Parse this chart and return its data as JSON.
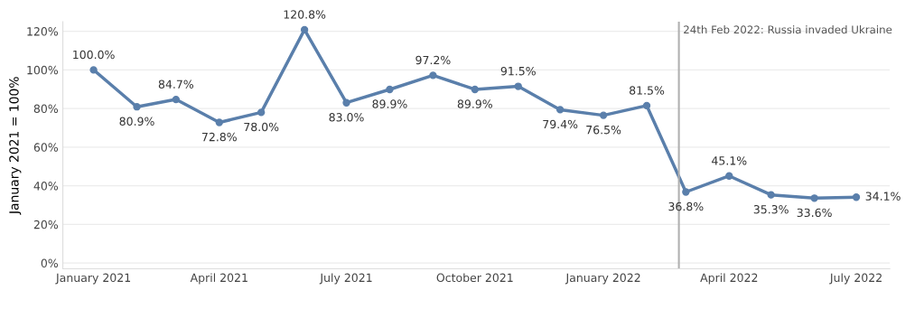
{
  "chart_data": {
    "type": "line",
    "ylabel": "January 2021 = 100%",
    "x": [
      "2021-01",
      "2021-02",
      "2021-03",
      "2021-04",
      "2021-05",
      "2021-06",
      "2021-07",
      "2021-08",
      "2021-09",
      "2021-10",
      "2021-11",
      "2021-12",
      "2022-01",
      "2022-02",
      "2022-03",
      "2022-04",
      "2022-05",
      "2022-06",
      "2022-07"
    ],
    "series": [
      {
        "color": "#5a7fab",
        "values": [
          100.0,
          80.9,
          84.7,
          72.8,
          78.0,
          120.8,
          83.0,
          89.9,
          97.2,
          89.9,
          91.5,
          79.4,
          76.5,
          81.5,
          36.8,
          45.1,
          35.3,
          33.6,
          34.1
        ],
        "value_labels": [
          "100.0%",
          "80.9%",
          "84.7%",
          "72.8%",
          "78.0%",
          "120.8%",
          "83.0%",
          "89.9%",
          "97.2%",
          "89.9%",
          "91.5%",
          "79.4%",
          "76.5%",
          "81.5%",
          "36.8%",
          "45.1%",
          "35.3%",
          "33.6%",
          "34.1%"
        ]
      }
    ],
    "marker": "circle",
    "line_style": "solid",
    "xlim": [
      "2020-12-10",
      "2022-07-25"
    ],
    "xticks": [
      {
        "value": "2021-01",
        "label": "January 2021"
      },
      {
        "value": "2021-04",
        "label": "April 2021"
      },
      {
        "value": "2021-07",
        "label": "July 2021"
      },
      {
        "value": "2021-10",
        "label": "October 2021"
      },
      {
        "value": "2022-01",
        "label": "January 2022"
      },
      {
        "value": "2022-04",
        "label": "April 2022"
      },
      {
        "value": "2022-07",
        "label": "July 2022"
      }
    ],
    "ylim": [
      -3,
      125
    ],
    "yticks": [
      {
        "value": 0,
        "label": "0%"
      },
      {
        "value": 20,
        "label": "20%"
      },
      {
        "value": 40,
        "label": "40%"
      },
      {
        "value": 60,
        "label": "60%"
      },
      {
        "value": 80,
        "label": "80%"
      },
      {
        "value": 100,
        "label": "100%"
      },
      {
        "value": 120,
        "label": "120%"
      }
    ],
    "ref_lines": [
      {
        "axis": "x",
        "value": "2022-02-24",
        "label": "24th Feb 2022: Russia invaded Ukraine",
        "color": "#b0b0b0",
        "line_style": "solid"
      }
    ],
    "grid": "y"
  }
}
